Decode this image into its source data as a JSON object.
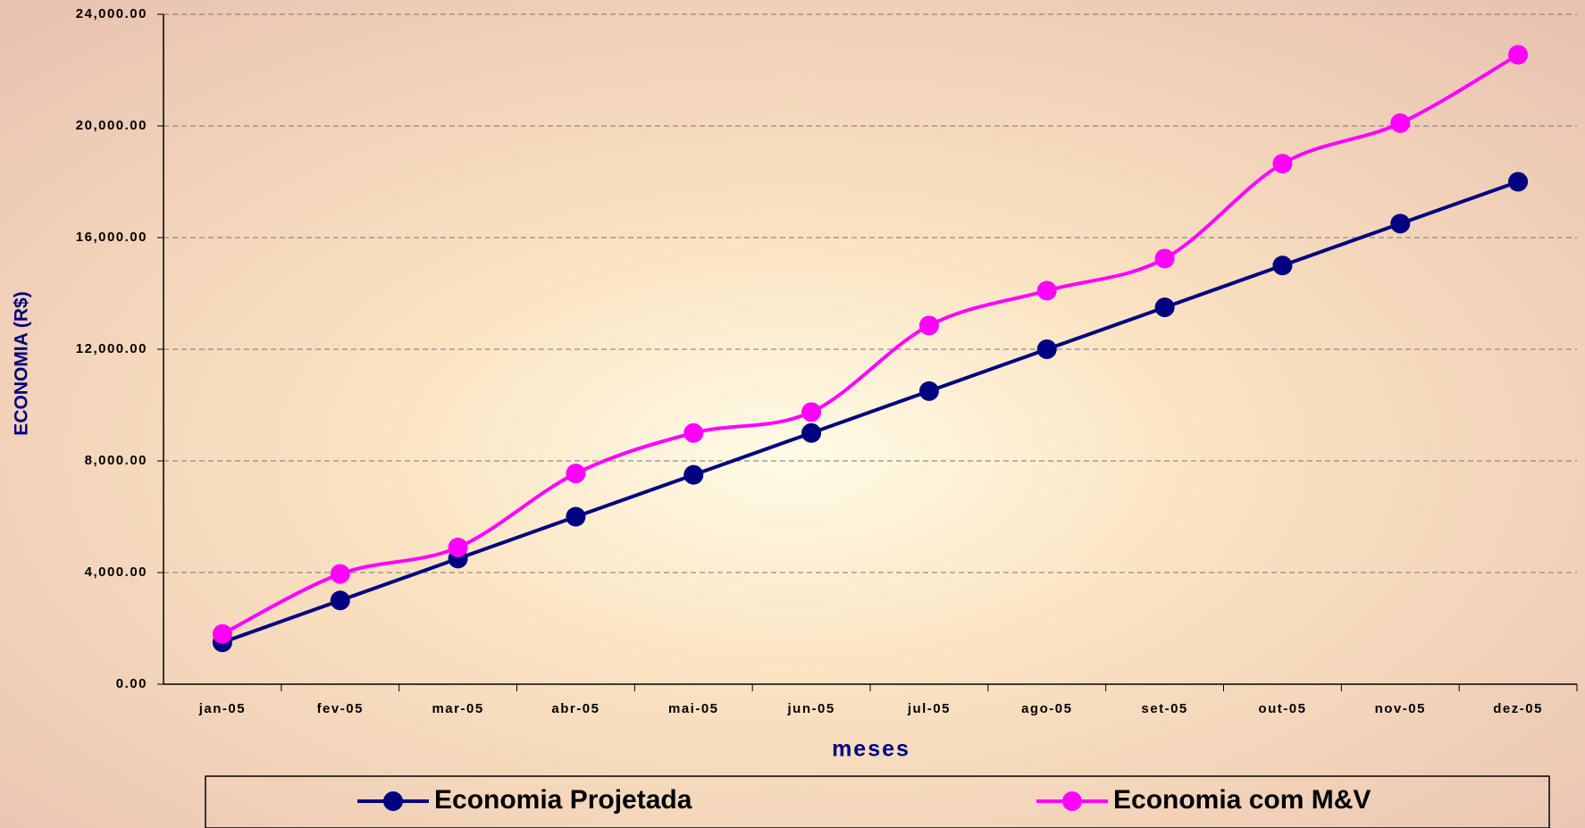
{
  "chart_data": {
    "type": "line",
    "x_label": "meses",
    "y_label": "ECONOMIA (R$)",
    "categories": [
      "jan-05",
      "fev-05",
      "mar-05",
      "abr-05",
      "mai-05",
      "jun-05",
      "jul-05",
      "ago-05",
      "set-05",
      "out-05",
      "nov-05",
      "dez-05"
    ],
    "series": [
      {
        "name": "Economia Projetada",
        "color": "#000080",
        "values": [
          1500,
          3000,
          4500,
          6000,
          7500,
          9000,
          10500,
          12000,
          13500,
          15000,
          16500,
          18000
        ]
      },
      {
        "name": "Economia com M&V",
        "color": "#ff00ff",
        "values": [
          1800,
          3950,
          4900,
          7550,
          9000,
          9750,
          12850,
          14100,
          15250,
          18650,
          20100,
          22550
        ]
      }
    ],
    "ylim": [
      0,
      24000
    ],
    "yticks": [
      {
        "value": 0,
        "label": "0.00"
      },
      {
        "value": 4000,
        "label": "4,000.00"
      },
      {
        "value": 8000,
        "label": "8,000.00"
      },
      {
        "value": 12000,
        "label": "12,000.00"
      },
      {
        "value": 16000,
        "label": "16,000.00"
      },
      {
        "value": 20000,
        "label": "20,000.00"
      },
      {
        "value": 24000,
        "label": "24,000.00"
      }
    ],
    "grid": true,
    "legend": "bottom"
  }
}
